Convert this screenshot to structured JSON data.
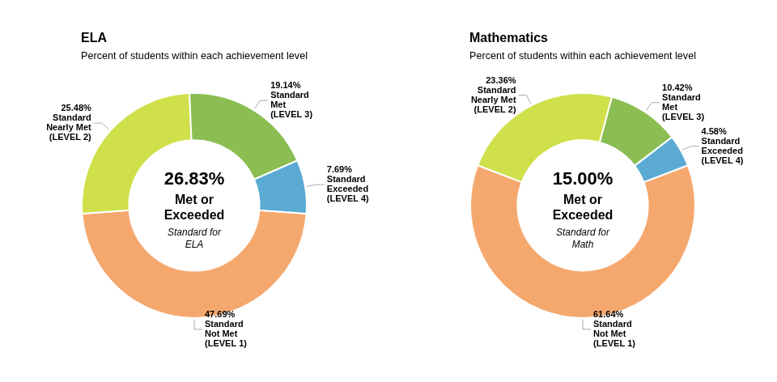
{
  "chart_data": [
    {
      "type": "doughnut",
      "title": "ELA",
      "subtitle": "Percent of students within each achievement level",
      "categories": [
        "Standard\nNot Met\n(LEVEL 1)",
        "Standard\nNearly Met\n(LEVEL 2)",
        "Standard\nMet\n(LEVEL 3)",
        "Standard\nExceeded\n(LEVEL 4)"
      ],
      "values": [
        47.69,
        25.48,
        19.14,
        7.69
      ],
      "value_labels": [
        "47.69%",
        "25.48%",
        "19.14%",
        "7.69%"
      ],
      "data_labels": true,
      "colors": [
        "#F5A86E",
        "#CFE04A",
        "#8BBD52",
        "#5BAAD4"
      ],
      "annotations": [
        "26.83%",
        "Met or",
        "Exceeded",
        "Standard for",
        "ELA"
      ]
    },
    {
      "type": "doughnut",
      "title": "Mathematics",
      "subtitle": "Percent of students within each achievement level",
      "categories": [
        "Standard\nNot Met\n(LEVEL 1)",
        "Standard\nNearly Met\n(LEVEL 2)",
        "Standard\nMet\n(LEVEL 3)",
        "Standard\nExceeded\n(LEVEL 4)"
      ],
      "values": [
        61.64,
        23.36,
        10.42,
        4.58
      ],
      "value_labels": [
        "61.64%",
        "23.36%",
        "10.42%",
        "4.58%"
      ],
      "data_labels": true,
      "colors": [
        "#F5A86E",
        "#CFE04A",
        "#8BBD52",
        "#5BAAD4"
      ],
      "annotations": [
        "15.00%",
        "Met or",
        "Exceeded",
        "Standard for",
        "Math"
      ]
    }
  ]
}
